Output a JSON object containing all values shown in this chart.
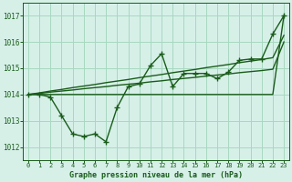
{
  "xlabel": "Graphe pression niveau de la mer (hPa)",
  "ylim": [
    1011.5,
    1017.5
  ],
  "xlim": [
    -0.5,
    23.5
  ],
  "yticks": [
    1012,
    1013,
    1014,
    1015,
    1016,
    1017
  ],
  "xticks": [
    0,
    1,
    2,
    3,
    4,
    5,
    6,
    7,
    8,
    9,
    10,
    11,
    12,
    13,
    14,
    15,
    16,
    17,
    18,
    19,
    20,
    21,
    22,
    23
  ],
  "bg_color": "#d6f0e8",
  "grid_color": "#a8d8c0",
  "line_color": "#1a5c1a",
  "series": {
    "main": [
      1014.0,
      1014.0,
      1013.9,
      1013.2,
      1012.5,
      1012.4,
      1012.5,
      1012.2,
      1013.5,
      1014.3,
      1014.4,
      1015.1,
      1015.55,
      1014.3,
      1014.8,
      1014.8,
      1014.8,
      1014.6,
      1014.85,
      1015.3,
      1015.35,
      1015.35,
      1016.3,
      1017.0
    ],
    "trend1": [
      1014.0,
      1014.0,
      1014.0,
      1014.0,
      1014.0,
      1014.0,
      1014.0,
      1014.0,
      1014.0,
      1014.0,
      1014.0,
      1014.0,
      1014.0,
      1014.0,
      1014.0,
      1014.0,
      1014.0,
      1014.0,
      1014.0,
      1014.0,
      1014.0,
      1014.0,
      1014.0,
      1017.0
    ],
    "trend2": [
      1014.0,
      1014.04,
      1014.09,
      1014.13,
      1014.17,
      1014.22,
      1014.26,
      1014.3,
      1014.35,
      1014.39,
      1014.43,
      1014.48,
      1014.52,
      1014.57,
      1014.61,
      1014.65,
      1014.7,
      1014.74,
      1014.78,
      1014.83,
      1014.87,
      1014.91,
      1014.96,
      1016.0
    ],
    "trend3": [
      1014.0,
      1014.06,
      1014.13,
      1014.19,
      1014.26,
      1014.32,
      1014.38,
      1014.45,
      1014.51,
      1014.57,
      1014.64,
      1014.7,
      1014.76,
      1014.83,
      1014.89,
      1014.95,
      1015.02,
      1015.08,
      1015.14,
      1015.21,
      1015.27,
      1015.33,
      1015.4,
      1016.25
    ]
  },
  "font_color": "#1a5c1a",
  "markersize": 3.0,
  "linewidth": 1.0
}
